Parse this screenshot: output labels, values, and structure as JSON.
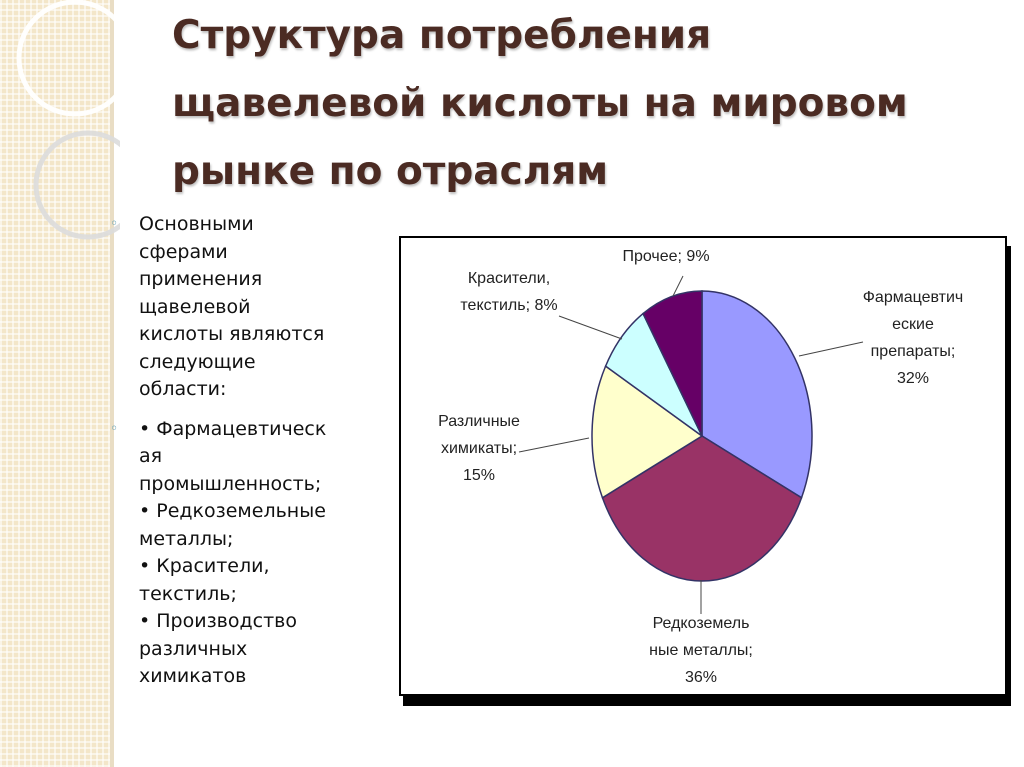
{
  "slide": {
    "title_lines": [
      "Структура потребления",
      "щавелевой кислоты на мировом",
      "рынке по отраслям"
    ],
    "intro_lines": [
      "Основными",
      "сферами",
      "применения",
      "щавелевой",
      "кислоты являются",
      "следующие",
      "области:"
    ],
    "list_lines": [
      "• Фармацевтическ",
      "ая",
      "промышленность;",
      "• Редкоземельные",
      "металлы;",
      "• Красители,",
      "текстиль;",
      "• Производство",
      "различных",
      "химикатов"
    ],
    "bullet_glyph": "◦"
  },
  "chart_data": {
    "type": "pie",
    "title": "",
    "slices": [
      {
        "label_lines": [
          "Фармацевтич",
          "еские",
          "препараты;",
          "32%"
        ],
        "value": 32,
        "color": "#9999ff"
      },
      {
        "label_lines": [
          "Редкоземель",
          "ные металлы;",
          "36%"
        ],
        "value": 36,
        "color": "#993366"
      },
      {
        "label_lines": [
          "Различные",
          "химикаты;",
          "15%"
        ],
        "value": 15,
        "color": "#ffffcc"
      },
      {
        "label_lines": [
          "Красители,",
          "текстиль; 8%"
        ],
        "value": 8,
        "color": "#ccffff"
      },
      {
        "label_lines": [
          "Прочее; 9%"
        ],
        "value": 9,
        "color": "#660066"
      }
    ],
    "start_angle_deg": 0,
    "direction": "clockwise",
    "legend": "none"
  },
  "colors": {
    "title": "#4b2b23",
    "bullet": "#5b9bb0",
    "stripe": "#f3e6c9"
  }
}
